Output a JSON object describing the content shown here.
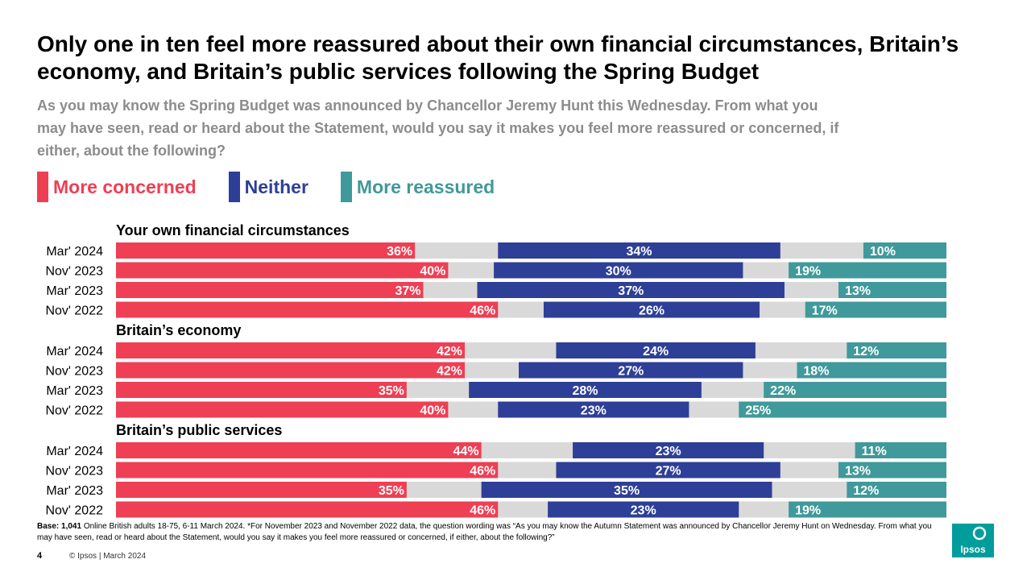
{
  "title": "Only one in ten feel more reassured about their own financial circumstances, Britain’s economy, and Britain’s public services following the Spring Budget",
  "subtitle": "As you may know the Spring Budget was announced by Chancellor Jeremy Hunt this Wednesday.  From what you may have seen, read or heard about the Statement, would you say it makes you feel more reassured or concerned, if either, about the following?",
  "legend": [
    {
      "label": "More concerned",
      "color": "#ee3f54"
    },
    {
      "label": "Neither",
      "color": "#2e3f97"
    },
    {
      "label": "More reassured",
      "color": "#40999a"
    }
  ],
  "colors": {
    "concerned": "#ee3f54",
    "neither": "#2e3f97",
    "reassured": "#40999a",
    "gap": "#d9d9d9"
  },
  "chart_data": {
    "type": "bar",
    "orientation": "horizontal-diverging-stacked",
    "unit": "%",
    "series_names": [
      "More concerned",
      "Neither",
      "More reassured"
    ],
    "groups": [
      {
        "title": "Your own financial circumstances",
        "rows": [
          {
            "label": "Mar' 2024",
            "concerned": 36,
            "neither": 34,
            "reassured": 10
          },
          {
            "label": "Nov' 2023",
            "concerned": 40,
            "neither": 30,
            "reassured": 19
          },
          {
            "label": "Mar' 2023",
            "concerned": 37,
            "neither": 37,
            "reassured": 13
          },
          {
            "label": "Nov' 2022",
            "concerned": 46,
            "neither": 26,
            "reassured": 17
          }
        ]
      },
      {
        "title": "Britain’s economy",
        "rows": [
          {
            "label": "Mar' 2024",
            "concerned": 42,
            "neither": 24,
            "reassured": 12
          },
          {
            "label": "Nov' 2023",
            "concerned": 42,
            "neither": 27,
            "reassured": 18
          },
          {
            "label": "Mar' 2023",
            "concerned": 35,
            "neither": 28,
            "reassured": 22
          },
          {
            "label": "Nov' 2022",
            "concerned": 40,
            "neither": 23,
            "reassured": 25
          }
        ]
      },
      {
        "title": "Britain’s public services",
        "rows": [
          {
            "label": "Mar' 2024",
            "concerned": 44,
            "neither": 23,
            "reassured": 11
          },
          {
            "label": "Nov' 2023",
            "concerned": 46,
            "neither": 27,
            "reassured": 13
          },
          {
            "label": "Mar' 2023",
            "concerned": 35,
            "neither": 35,
            "reassured": 12
          },
          {
            "label": "Nov' 2022",
            "concerned": 46,
            "neither": 23,
            "reassured": 19
          }
        ]
      }
    ]
  },
  "footnote": {
    "base_label": "Base: 1,041",
    "text": " Online British adults 18-75, 6-11 March 2024. *For November 2023 and November 2022 data, the question wording was “As you may know the Autumn Statement was announced by Chancellor Jeremy Hunt on Wednesday. From what you may have seen, read or heard about the Statement, would you say it makes you feel more reassured or concerned, if either, about the following?”"
  },
  "page_number": "4",
  "copyright": "© Ipsos | March 2024",
  "logo_text": "Ipsos"
}
